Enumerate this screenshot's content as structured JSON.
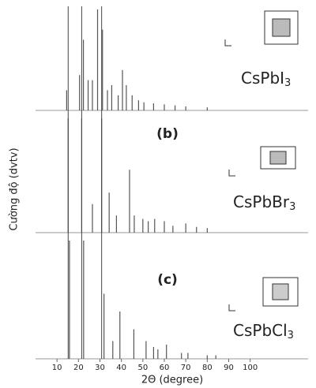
{
  "chart_data": {
    "type": "stick",
    "xlabel": "2Θ (degree)",
    "ylabel": "Cường độ (dvtv)",
    "xlim": [
      0,
      127
    ],
    "xticks": [
      10,
      20,
      30,
      40,
      50,
      60,
      70,
      80,
      90,
      100
    ],
    "ylim": [
      0,
      100
    ],
    "reference_lines": [
      15.2,
      21.5,
      30.8
    ],
    "series": [
      {
        "name": "CsPbI3",
        "color": "#555555",
        "x": [
          14.5,
          20.5,
          22.3,
          24.5,
          26.5,
          28.9,
          31.2,
          33.5,
          35.5,
          38.5,
          40.5,
          42.3,
          45.0,
          48.0,
          50.5,
          55.0,
          60.0,
          65.0,
          70.0,
          80.0
        ],
        "values": [
          20,
          35,
          70,
          30,
          30,
          100,
          80,
          20,
          25,
          15,
          40,
          25,
          15,
          10,
          8,
          7,
          6,
          5,
          4,
          3
        ]
      },
      {
        "name": "CsPbBr3",
        "panel_label": "(b)",
        "color": "#555555",
        "x": [
          15.2,
          21.5,
          26.5,
          30.8,
          34.3,
          37.7,
          43.8,
          46.0,
          50.0,
          52.5,
          55.5,
          60.0,
          64.0,
          70.0,
          75.0,
          80.0
        ],
        "values": [
          100,
          100,
          25,
          100,
          35,
          15,
          55,
          15,
          12,
          10,
          12,
          10,
          6,
          8,
          5,
          4
        ]
      },
      {
        "name": "CsPbCl3",
        "panel_label": "(c)",
        "color": "#555555",
        "x": [
          15.8,
          22.4,
          31.9,
          36.0,
          39.3,
          45.8,
          51.5,
          55.0,
          57.0,
          61.0,
          68.0,
          71.0,
          80.0,
          84.0
        ],
        "values": [
          100,
          100,
          55,
          15,
          40,
          25,
          15,
          10,
          8,
          12,
          5,
          5,
          3,
          3
        ]
      }
    ]
  }
}
